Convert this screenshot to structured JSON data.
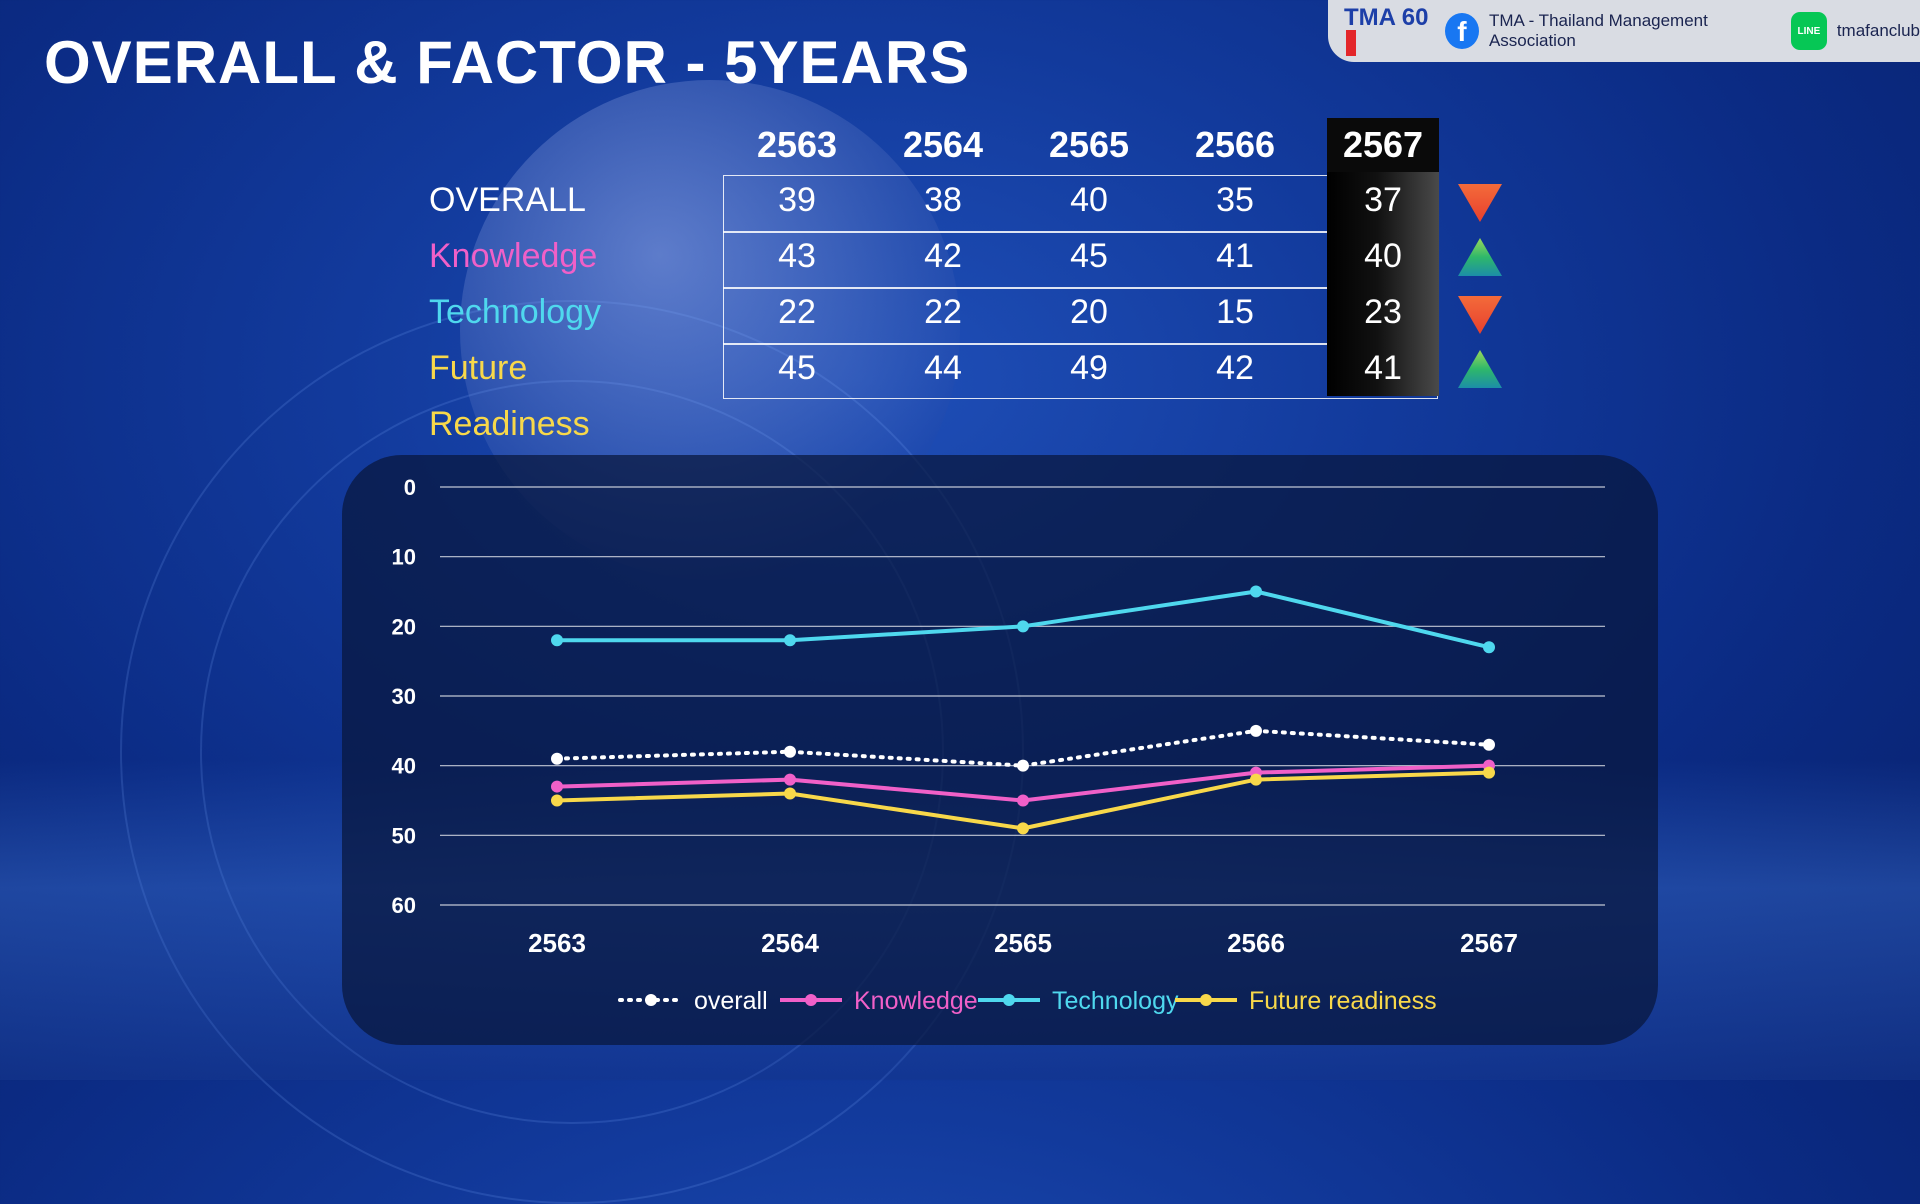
{
  "title": "OVERALL & FACTOR - 5YEARS",
  "brand": {
    "logo_text": "TMA 60",
    "facebook_icon": "facebook-icon",
    "facebook_label": "TMA - Thailand Management Association",
    "line_icon": "line-icon",
    "line_icon_text": "LINE",
    "line_label": "tmafanclub"
  },
  "table": {
    "years": [
      "2563",
      "2564",
      "2565",
      "2566",
      "2567"
    ],
    "rows": [
      {
        "label": "OVERALL",
        "color": "#ffffff",
        "values": [
          "39",
          "38",
          "40",
          "35",
          "37"
        ],
        "trend": "down",
        "trend_color": "#f05a3a"
      },
      {
        "label": "Knowledge",
        "color": "#f060c8",
        "values": [
          "43",
          "42",
          "45",
          "41",
          "40"
        ],
        "trend": "up",
        "trend_color": "#2fb86a"
      },
      {
        "label": "Technology",
        "color": "#4fd8ee",
        "values": [
          "22",
          "22",
          "20",
          "15",
          "23"
        ],
        "trend": "down",
        "trend_color": "#f05a3a"
      },
      {
        "label": "Future Readiness",
        "color": "#f8d84a",
        "values": [
          "45",
          "44",
          "49",
          "42",
          "41"
        ],
        "trend": "up",
        "trend_color": "#2fb86a"
      }
    ]
  },
  "chart_data": {
    "type": "line",
    "categories": [
      "2563",
      "2564",
      "2565",
      "2566",
      "2567"
    ],
    "ylim": [
      0,
      60
    ],
    "y_inverted": true,
    "y_ticks": [
      0,
      10,
      20,
      30,
      40,
      50,
      60
    ],
    "grid": true,
    "legend_position": "bottom",
    "series": [
      {
        "name": "overall",
        "values": [
          39,
          38,
          40,
          35,
          37
        ],
        "color": "#ffffff",
        "style": "dotted"
      },
      {
        "name": "Knowledge",
        "values": [
          43,
          42,
          45,
          41,
          40
        ],
        "color": "#f060c8",
        "style": "solid"
      },
      {
        "name": "Technology",
        "values": [
          22,
          22,
          20,
          15,
          23
        ],
        "color": "#4fd8ee",
        "style": "solid"
      },
      {
        "name": "Future readiness",
        "values": [
          45,
          44,
          49,
          42,
          41
        ],
        "color": "#f8d84a",
        "style": "solid"
      }
    ]
  }
}
